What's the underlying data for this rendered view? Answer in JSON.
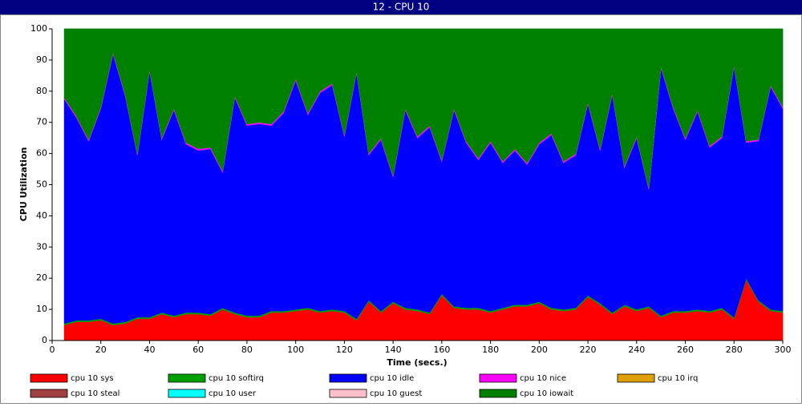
{
  "chart_data": {
    "type": "stacked_area",
    "title": "12 - CPU 10",
    "xlabel": "Time (secs.)",
    "ylabel": "CPU Utilization",
    "x": [
      5,
      10,
      15,
      20,
      25,
      30,
      35,
      40,
      45,
      50,
      55,
      60,
      65,
      70,
      75,
      80,
      85,
      90,
      95,
      100,
      105,
      110,
      115,
      120,
      125,
      130,
      135,
      140,
      145,
      150,
      155,
      160,
      165,
      170,
      175,
      180,
      185,
      190,
      195,
      200,
      205,
      210,
      215,
      220,
      225,
      230,
      235,
      240,
      245,
      250,
      255,
      260,
      265,
      270,
      275,
      280,
      285,
      290,
      295,
      300
    ],
    "xlim": [
      0,
      300
    ],
    "xticks": [
      0,
      20,
      40,
      60,
      80,
      100,
      120,
      140,
      160,
      180,
      200,
      220,
      240,
      260,
      280,
      300
    ],
    "ylim": [
      0,
      100
    ],
    "yticks": [
      0,
      10,
      20,
      30,
      40,
      50,
      60,
      70,
      80,
      90,
      100
    ],
    "series": [
      {
        "name": "cpu 10 sys",
        "color": "#ff0000",
        "values": [
          5,
          6,
          6,
          6.5,
          5,
          5.5,
          7,
          7,
          8.5,
          7.5,
          8.5,
          8.5,
          8,
          10,
          8.5,
          7.5,
          7.5,
          9,
          9,
          9.5,
          10,
          9,
          9.5,
          9,
          6.5,
          12.5,
          9,
          12,
          10,
          9.5,
          8.5,
          14.5,
          10.5,
          10,
          10,
          9,
          10,
          11,
          11,
          12,
          10,
          9.5,
          10,
          14,
          11.5,
          8.5,
          11,
          9.5,
          10.5,
          7.5,
          9,
          9,
          9.5,
          9,
          10,
          7,
          19.5,
          12.5,
          9.5,
          9
        ]
      },
      {
        "name": "cpu 10 softirq",
        "color": "#00a000",
        "values": [
          0.5,
          0.5,
          0.5,
          0.5,
          0.5,
          0.5,
          0.5,
          0.5,
          0.5,
          0.5,
          0.5,
          0.5,
          0.5,
          0.5,
          0.5,
          0.5,
          0.5,
          0.5,
          0.5,
          0.5,
          0.5,
          0.5,
          0.5,
          0.5,
          0.5,
          0.5,
          0.5,
          0.5,
          0.5,
          0.5,
          0.5,
          0.5,
          0.5,
          0.5,
          0.5,
          0.5,
          0.5,
          0.5,
          0.5,
          0.5,
          0.5,
          0.5,
          0.5,
          0.5,
          0.5,
          0.5,
          0.5,
          0.5,
          0.5,
          0.5,
          0.5,
          0.5,
          0.5,
          0.5,
          0.5,
          0.5,
          0.5,
          0.5,
          0.5,
          0.5
        ]
      },
      {
        "name": "cpu 10 idle",
        "color": "#0000ff",
        "values": [
          72,
          65,
          57.5,
          67.5,
          86.5,
          72.5,
          52,
          79,
          55.5,
          66,
          54,
          52,
          53,
          43.5,
          69,
          61,
          61.5,
          59.5,
          63.5,
          73.5,
          62,
          70,
          72,
          56,
          79,
          46.5,
          55,
          40,
          63.5,
          55,
          59.5,
          42.5,
          63,
          53,
          47.5,
          54,
          46.5,
          49.5,
          45,
          50.5,
          55.5,
          47,
          49,
          61.5,
          49,
          70,
          44,
          55,
          37.5,
          79.5,
          65,
          55,
          63.5,
          52.5,
          54.5,
          80.5,
          43.5,
          51,
          71.5,
          65
        ]
      },
      {
        "name": "cpu 10 nice",
        "color": "#ff00ff",
        "values": [
          0.5,
          0.5,
          0.5,
          0.5,
          0.5,
          0.5,
          0.5,
          0.5,
          0.5,
          0.5,
          0.5,
          0.5,
          0.5,
          0.5,
          0.5,
          0.5,
          0.5,
          0.5,
          0.5,
          0.5,
          0.5,
          0.5,
          0.5,
          0.5,
          0.5,
          0.5,
          0.5,
          0.5,
          0.5,
          0.5,
          0.5,
          0.5,
          0.5,
          0.5,
          0.5,
          0.5,
          0.5,
          0.5,
          0.5,
          0.5,
          0.5,
          0.5,
          0.5,
          0.5,
          0.5,
          0.5,
          0.5,
          0.5,
          0.5,
          0.5,
          0.5,
          0.5,
          0.5,
          0.5,
          0.5,
          0.5,
          0.5,
          0.5,
          0.5,
          0.5
        ]
      },
      {
        "name": "cpu 10 irq",
        "color": "#e0a000",
        "values": [
          0,
          0,
          0,
          0,
          0,
          0,
          0,
          0,
          0,
          0,
          0,
          0,
          0,
          0,
          0,
          0,
          0,
          0,
          0,
          0,
          0,
          0,
          0,
          0,
          0,
          0,
          0,
          0,
          0,
          0,
          0,
          0,
          0,
          0,
          0,
          0,
          0,
          0,
          0,
          0,
          0,
          0,
          0,
          0,
          0,
          0,
          0,
          0,
          0,
          0,
          0,
          0,
          0,
          0,
          0,
          0,
          0,
          0,
          0,
          0
        ]
      },
      {
        "name": "cpu 10 steal",
        "color": "#a04040",
        "values": [
          0,
          0,
          0,
          0,
          0,
          0,
          0,
          0,
          0,
          0,
          0,
          0,
          0,
          0,
          0,
          0,
          0,
          0,
          0,
          0,
          0,
          0,
          0,
          0,
          0,
          0,
          0,
          0,
          0,
          0,
          0,
          0,
          0,
          0,
          0,
          0,
          0,
          0,
          0,
          0,
          0,
          0,
          0,
          0,
          0,
          0,
          0,
          0,
          0,
          0,
          0,
          0,
          0,
          0,
          0,
          0,
          0,
          0,
          0,
          0
        ]
      },
      {
        "name": "cpu 10 user",
        "color": "#00ffff",
        "values": [
          0,
          0,
          0,
          0,
          0,
          0,
          0,
          0,
          0,
          0,
          0,
          0,
          0,
          0,
          0,
          0,
          0,
          0,
          0,
          0,
          0,
          0,
          0,
          0,
          0,
          0,
          0,
          0,
          0,
          0,
          0,
          0,
          0,
          0,
          0,
          0,
          0,
          0,
          0,
          0,
          0,
          0,
          0,
          0,
          0,
          0,
          0,
          0,
          0,
          0,
          0,
          0,
          0,
          0,
          0,
          0,
          0,
          0,
          0,
          0
        ]
      },
      {
        "name": "cpu 10 guest",
        "color": "#ffc0cb",
        "values": [
          0,
          0,
          0,
          0,
          0,
          0,
          0,
          0,
          0,
          0,
          0,
          0,
          0,
          0,
          0,
          0,
          0,
          0,
          0,
          0,
          0,
          0,
          0,
          0,
          0,
          0,
          0,
          0,
          0,
          0,
          0,
          0,
          0,
          0,
          0,
          0,
          0,
          0,
          0,
          0,
          0,
          0,
          0,
          0,
          0,
          0,
          0,
          0,
          0,
          0,
          0,
          0,
          0,
          0,
          0,
          0,
          0,
          0,
          0,
          0
        ]
      },
      {
        "name": "cpu 10 iowait",
        "color": "#008000",
        "values": [
          22,
          28,
          35.5,
          25,
          7.5,
          21,
          40,
          13,
          35,
          25.5,
          36.5,
          38.5,
          38,
          45.5,
          21.5,
          30.5,
          30,
          30.5,
          26.5,
          16,
          27,
          20,
          17.5,
          34,
          13.5,
          40,
          35,
          47,
          25.5,
          34.5,
          31,
          42,
          25.5,
          36,
          41.5,
          36,
          42.5,
          38.5,
          43,
          36.5,
          33.5,
          42.5,
          40,
          23.5,
          38.5,
          20.5,
          44,
          34.5,
          51,
          12,
          25,
          35,
          26,
          37.5,
          34.5,
          11.5,
          36,
          35.5,
          18,
          25
        ]
      }
    ]
  }
}
